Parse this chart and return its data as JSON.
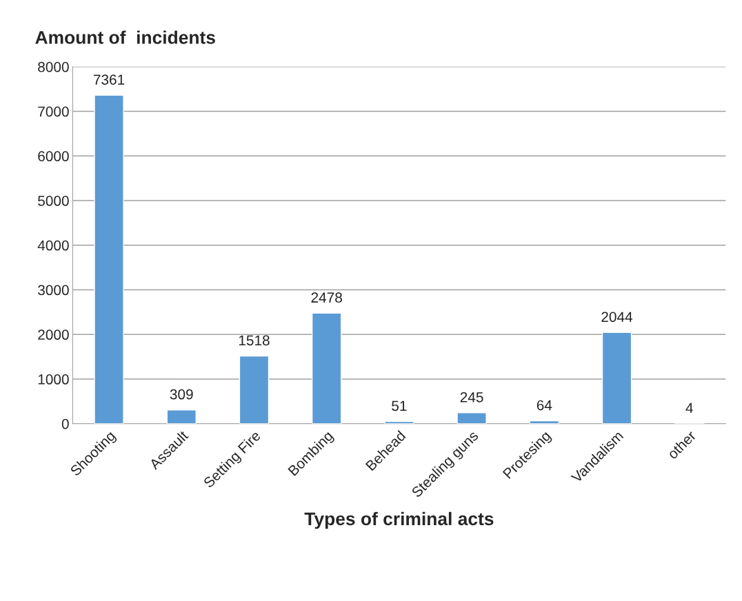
{
  "chart_data": {
    "type": "bar",
    "ylabel": "Amount of  incidents",
    "xlabel": "Types of criminal acts",
    "categories": [
      "Shooting",
      "Assault",
      "Setting Fire",
      "Bombing",
      "Behead",
      "Stealing guns",
      "Protesing",
      "Vandalism",
      "other"
    ],
    "values": [
      7361,
      309,
      1518,
      2478,
      51,
      245,
      64,
      2044,
      4
    ],
    "color": "#5b9bd5",
    "ylim": [
      0,
      8000
    ],
    "yticks": [
      0,
      1000,
      2000,
      3000,
      4000,
      5000,
      6000,
      7000,
      8000
    ],
    "grid": "y",
    "data_labels": true
  }
}
